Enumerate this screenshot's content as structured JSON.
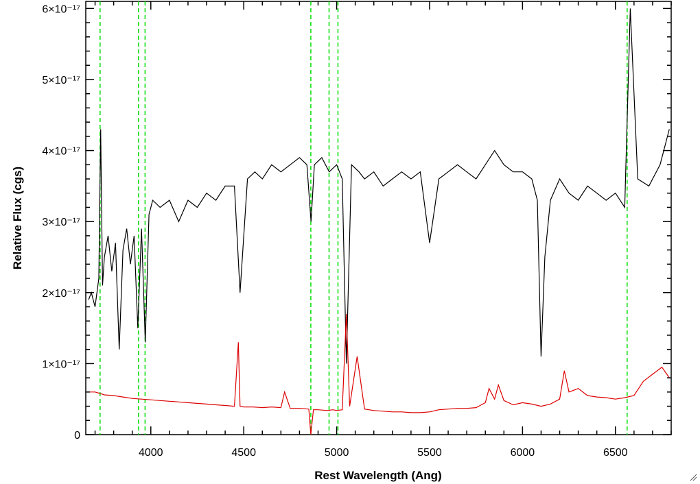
{
  "chart_data": {
    "type": "line",
    "title": "",
    "xlabel": "Rest Wavelength (Ang)",
    "ylabel": "Relative Flux (cgs)",
    "xlim": [
      3650,
      6800
    ],
    "ylim": [
      0,
      6.1e-17
    ],
    "x_ticks": [
      4000,
      4500,
      5000,
      5500,
      6000,
      6500
    ],
    "y_ticks": [
      {
        "value": 0,
        "label": "0"
      },
      {
        "value": 1e-17,
        "label": "1×10⁻¹⁷"
      },
      {
        "value": 2e-17,
        "label": "2×10⁻¹⁷"
      },
      {
        "value": 3e-17,
        "label": "3×10⁻¹⁷"
      },
      {
        "value": 4e-17,
        "label": "4×10⁻¹⁷"
      },
      {
        "value": 5e-17,
        "label": "5×10⁻¹⁷"
      },
      {
        "value": 6e-17,
        "label": "6×10⁻¹⁷"
      }
    ],
    "grid": false,
    "vertical_lines": {
      "color": "#00dd00",
      "style": "dashed",
      "x": [
        3727,
        3934,
        3969,
        4861,
        4959,
        5007,
        6563
      ]
    },
    "series": [
      {
        "color": "#000000",
        "x": [
          3665,
          3680,
          3700,
          3720,
          3730,
          3740,
          3750,
          3770,
          3790,
          3810,
          3830,
          3850,
          3870,
          3890,
          3910,
          3930,
          3950,
          3970,
          3990,
          4010,
          4050,
          4100,
          4150,
          4200,
          4250,
          4300,
          4350,
          4400,
          4450,
          4480,
          4520,
          4560,
          4600,
          4650,
          4700,
          4750,
          4800,
          4840,
          4862,
          4880,
          4920,
          4960,
          5000,
          5030,
          5052,
          5080,
          5120,
          5150,
          5200,
          5250,
          5300,
          5350,
          5400,
          5450,
          5500,
          5550,
          5600,
          5650,
          5700,
          5750,
          5800,
          5850,
          5900,
          5950,
          6000,
          6050,
          6080,
          6100,
          6120,
          6150,
          6200,
          6250,
          6300,
          6350,
          6400,
          6450,
          6500,
          6550,
          6580,
          6620,
          6680,
          6740,
          6790
        ],
        "y": [
          1.9e-17,
          2e-17,
          1.8e-17,
          2.2e-17,
          4.3e-17,
          2.1e-17,
          2.5e-17,
          2.8e-17,
          2.3e-17,
          2.7e-17,
          1.2e-17,
          2.6e-17,
          2.9e-17,
          2.4e-17,
          2.8e-17,
          1.5e-17,
          2.9e-17,
          1.3e-17,
          3.1e-17,
          3.3e-17,
          3.2e-17,
          3.3e-17,
          3e-17,
          3.3e-17,
          3.2e-17,
          3.4e-17,
          3.3e-17,
          3.5e-17,
          3.5e-17,
          2e-17,
          3.6e-17,
          3.7e-17,
          3.6e-17,
          3.8e-17,
          3.7e-17,
          3.8e-17,
          3.9e-17,
          3.8e-17,
          3e-17,
          3.8e-17,
          3.9e-17,
          3.7e-17,
          3.8e-17,
          3.6e-17,
          1e-17,
          3.8e-17,
          3.7e-17,
          3.6e-17,
          3.7e-17,
          3.5e-17,
          3.6e-17,
          3.7e-17,
          3.6e-17,
          3.7e-17,
          2.7e-17,
          3.6e-17,
          3.7e-17,
          3.8e-17,
          3.7e-17,
          3.6e-17,
          3.8e-17,
          4e-17,
          3.8e-17,
          3.7e-17,
          3.7e-17,
          3.6e-17,
          3.3e-17,
          1.1e-17,
          2.5e-17,
          3.3e-17,
          3.6e-17,
          3.4e-17,
          3.3e-17,
          3.5e-17,
          3.4e-17,
          3.3e-17,
          3.4e-17,
          3.2e-17,
          6e-17,
          3.6e-17,
          3.5e-17,
          3.8e-17,
          4.3e-17
        ]
      },
      {
        "color": "#dd0000",
        "x": [
          3665,
          3700,
          3727,
          3750,
          3800,
          3850,
          3900,
          3950,
          4000,
          4050,
          4100,
          4150,
          4200,
          4250,
          4300,
          4350,
          4400,
          4450,
          4471,
          4480,
          4500,
          4550,
          4600,
          4650,
          4700,
          4720,
          4750,
          4800,
          4850,
          4861,
          4875,
          4900,
          4950,
          4980,
          5000,
          5030,
          5052,
          5070,
          5110,
          5150,
          5200,
          5250,
          5300,
          5350,
          5400,
          5450,
          5500,
          5550,
          5600,
          5650,
          5700,
          5750,
          5800,
          5820,
          5850,
          5870,
          5900,
          5950,
          6000,
          6050,
          6100,
          6150,
          6200,
          6225,
          6250,
          6300,
          6350,
          6400,
          6450,
          6500,
          6550,
          6600,
          6650,
          6700,
          6750,
          6790
        ],
        "y": [
          6e-18,
          6e-18,
          5.8e-18,
          5.6e-18,
          5.5e-18,
          5.3e-18,
          5.1e-18,
          5e-18,
          4.9e-18,
          4.8e-18,
          4.7e-18,
          4.6e-18,
          4.5e-18,
          4.4e-18,
          4.3e-18,
          4.2e-18,
          4.1e-18,
          4e-18,
          1.3e-17,
          4e-18,
          3.9e-18,
          3.9e-18,
          3.8e-18,
          3.9e-18,
          3.8e-18,
          6e-18,
          3.7e-18,
          3.7e-18,
          3.6e-18,
          -3e-18,
          3.5e-18,
          3.5e-18,
          3.4e-18,
          3.5e-18,
          3.4e-18,
          3.5e-18,
          1.7e-17,
          4e-18,
          1.1e-17,
          3.6e-18,
          3.4e-18,
          3.3e-18,
          3.2e-18,
          3.2e-18,
          3.1e-18,
          3.1e-18,
          3.2e-18,
          3.5e-18,
          3.6e-18,
          3.7e-18,
          3.7e-18,
          3.8e-18,
          4.5e-18,
          6.5e-18,
          5e-18,
          7e-18,
          4.8e-18,
          4.2e-18,
          4.5e-18,
          4.3e-18,
          4e-18,
          4.3e-18,
          5e-18,
          9e-18,
          6e-18,
          6.5e-18,
          5.5e-18,
          5.3e-18,
          5.2e-18,
          5e-18,
          5.2e-18,
          5.5e-18,
          7.5e-18,
          8.5e-18,
          9.5e-18,
          8e-18
        ]
      }
    ]
  }
}
